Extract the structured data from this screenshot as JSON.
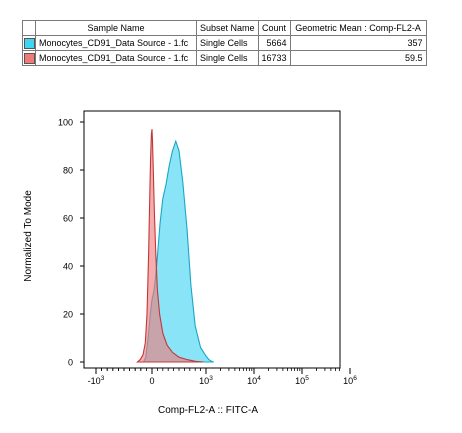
{
  "table": {
    "headers": [
      "Sample Name",
      "Subset Name",
      "Count",
      "Geometric Mean : Comp-FL2-A"
    ],
    "rows": [
      {
        "color": "#3fd4f0",
        "sample": "Monocytes_CD91_Data Source - 1.fc",
        "subset": "Single Cells",
        "count": "5664",
        "geomean": "357"
      },
      {
        "color": "#f07a7a",
        "sample": "Monocytes_CD91_Data Source - 1.fc",
        "subset": "Single Cells",
        "count": "16733",
        "geomean": "59.5"
      }
    ]
  },
  "chart_data": {
    "type": "area",
    "xlabel": "Comp-FL2-A :: FITC-A",
    "ylabel": "Normalized To Mode",
    "x_scale": "biexponential",
    "x_ticks": [
      {
        "label": "-10",
        "exp": "3",
        "value": -1000
      },
      {
        "label": "0",
        "exp": "",
        "value": 0
      },
      {
        "label": "10",
        "exp": "3",
        "value": 1000
      },
      {
        "label": "10",
        "exp": "4",
        "value": 10000
      },
      {
        "label": "10",
        "exp": "5",
        "value": 100000
      },
      {
        "label": "10",
        "exp": "6",
        "value": 1000000
      }
    ],
    "y_ticks": [
      0,
      20,
      40,
      60,
      80,
      100
    ],
    "ylim": [
      0,
      100
    ],
    "series": [
      {
        "color": "#f07a7a",
        "stroke": "#c0383a",
        "points": [
          [
            -260,
            0
          ],
          [
            -210,
            1
          ],
          [
            -160,
            3
          ],
          [
            -120,
            8
          ],
          [
            -90,
            20
          ],
          [
            -60,
            45
          ],
          [
            -40,
            70
          ],
          [
            -25,
            85
          ],
          [
            -10,
            95
          ],
          [
            0,
            97
          ],
          [
            10,
            92
          ],
          [
            25,
            80
          ],
          [
            45,
            62
          ],
          [
            70,
            45
          ],
          [
            100,
            30
          ],
          [
            140,
            20
          ],
          [
            200,
            12
          ],
          [
            280,
            7
          ],
          [
            380,
            4
          ],
          [
            500,
            2
          ],
          [
            650,
            1
          ],
          [
            800,
            0.3
          ],
          [
            950,
            0
          ]
        ]
      },
      {
        "color": "#3fd4f0",
        "stroke": "#1aa7c4",
        "points": [
          [
            -150,
            0
          ],
          [
            -110,
            2
          ],
          [
            -70,
            10
          ],
          [
            -30,
            20
          ],
          [
            0,
            26
          ],
          [
            30,
            29
          ],
          [
            60,
            34
          ],
          [
            100,
            44
          ],
          [
            150,
            58
          ],
          [
            200,
            68
          ],
          [
            260,
            74
          ],
          [
            320,
            82
          ],
          [
            380,
            88
          ],
          [
            440,
            92
          ],
          [
            500,
            88
          ],
          [
            570,
            75
          ],
          [
            650,
            55
          ],
          [
            720,
            32
          ],
          [
            800,
            15
          ],
          [
            900,
            6
          ],
          [
            1000,
            2.5
          ],
          [
            1150,
            1
          ],
          [
            1300,
            0.3
          ],
          [
            1450,
            0
          ]
        ]
      }
    ]
  }
}
